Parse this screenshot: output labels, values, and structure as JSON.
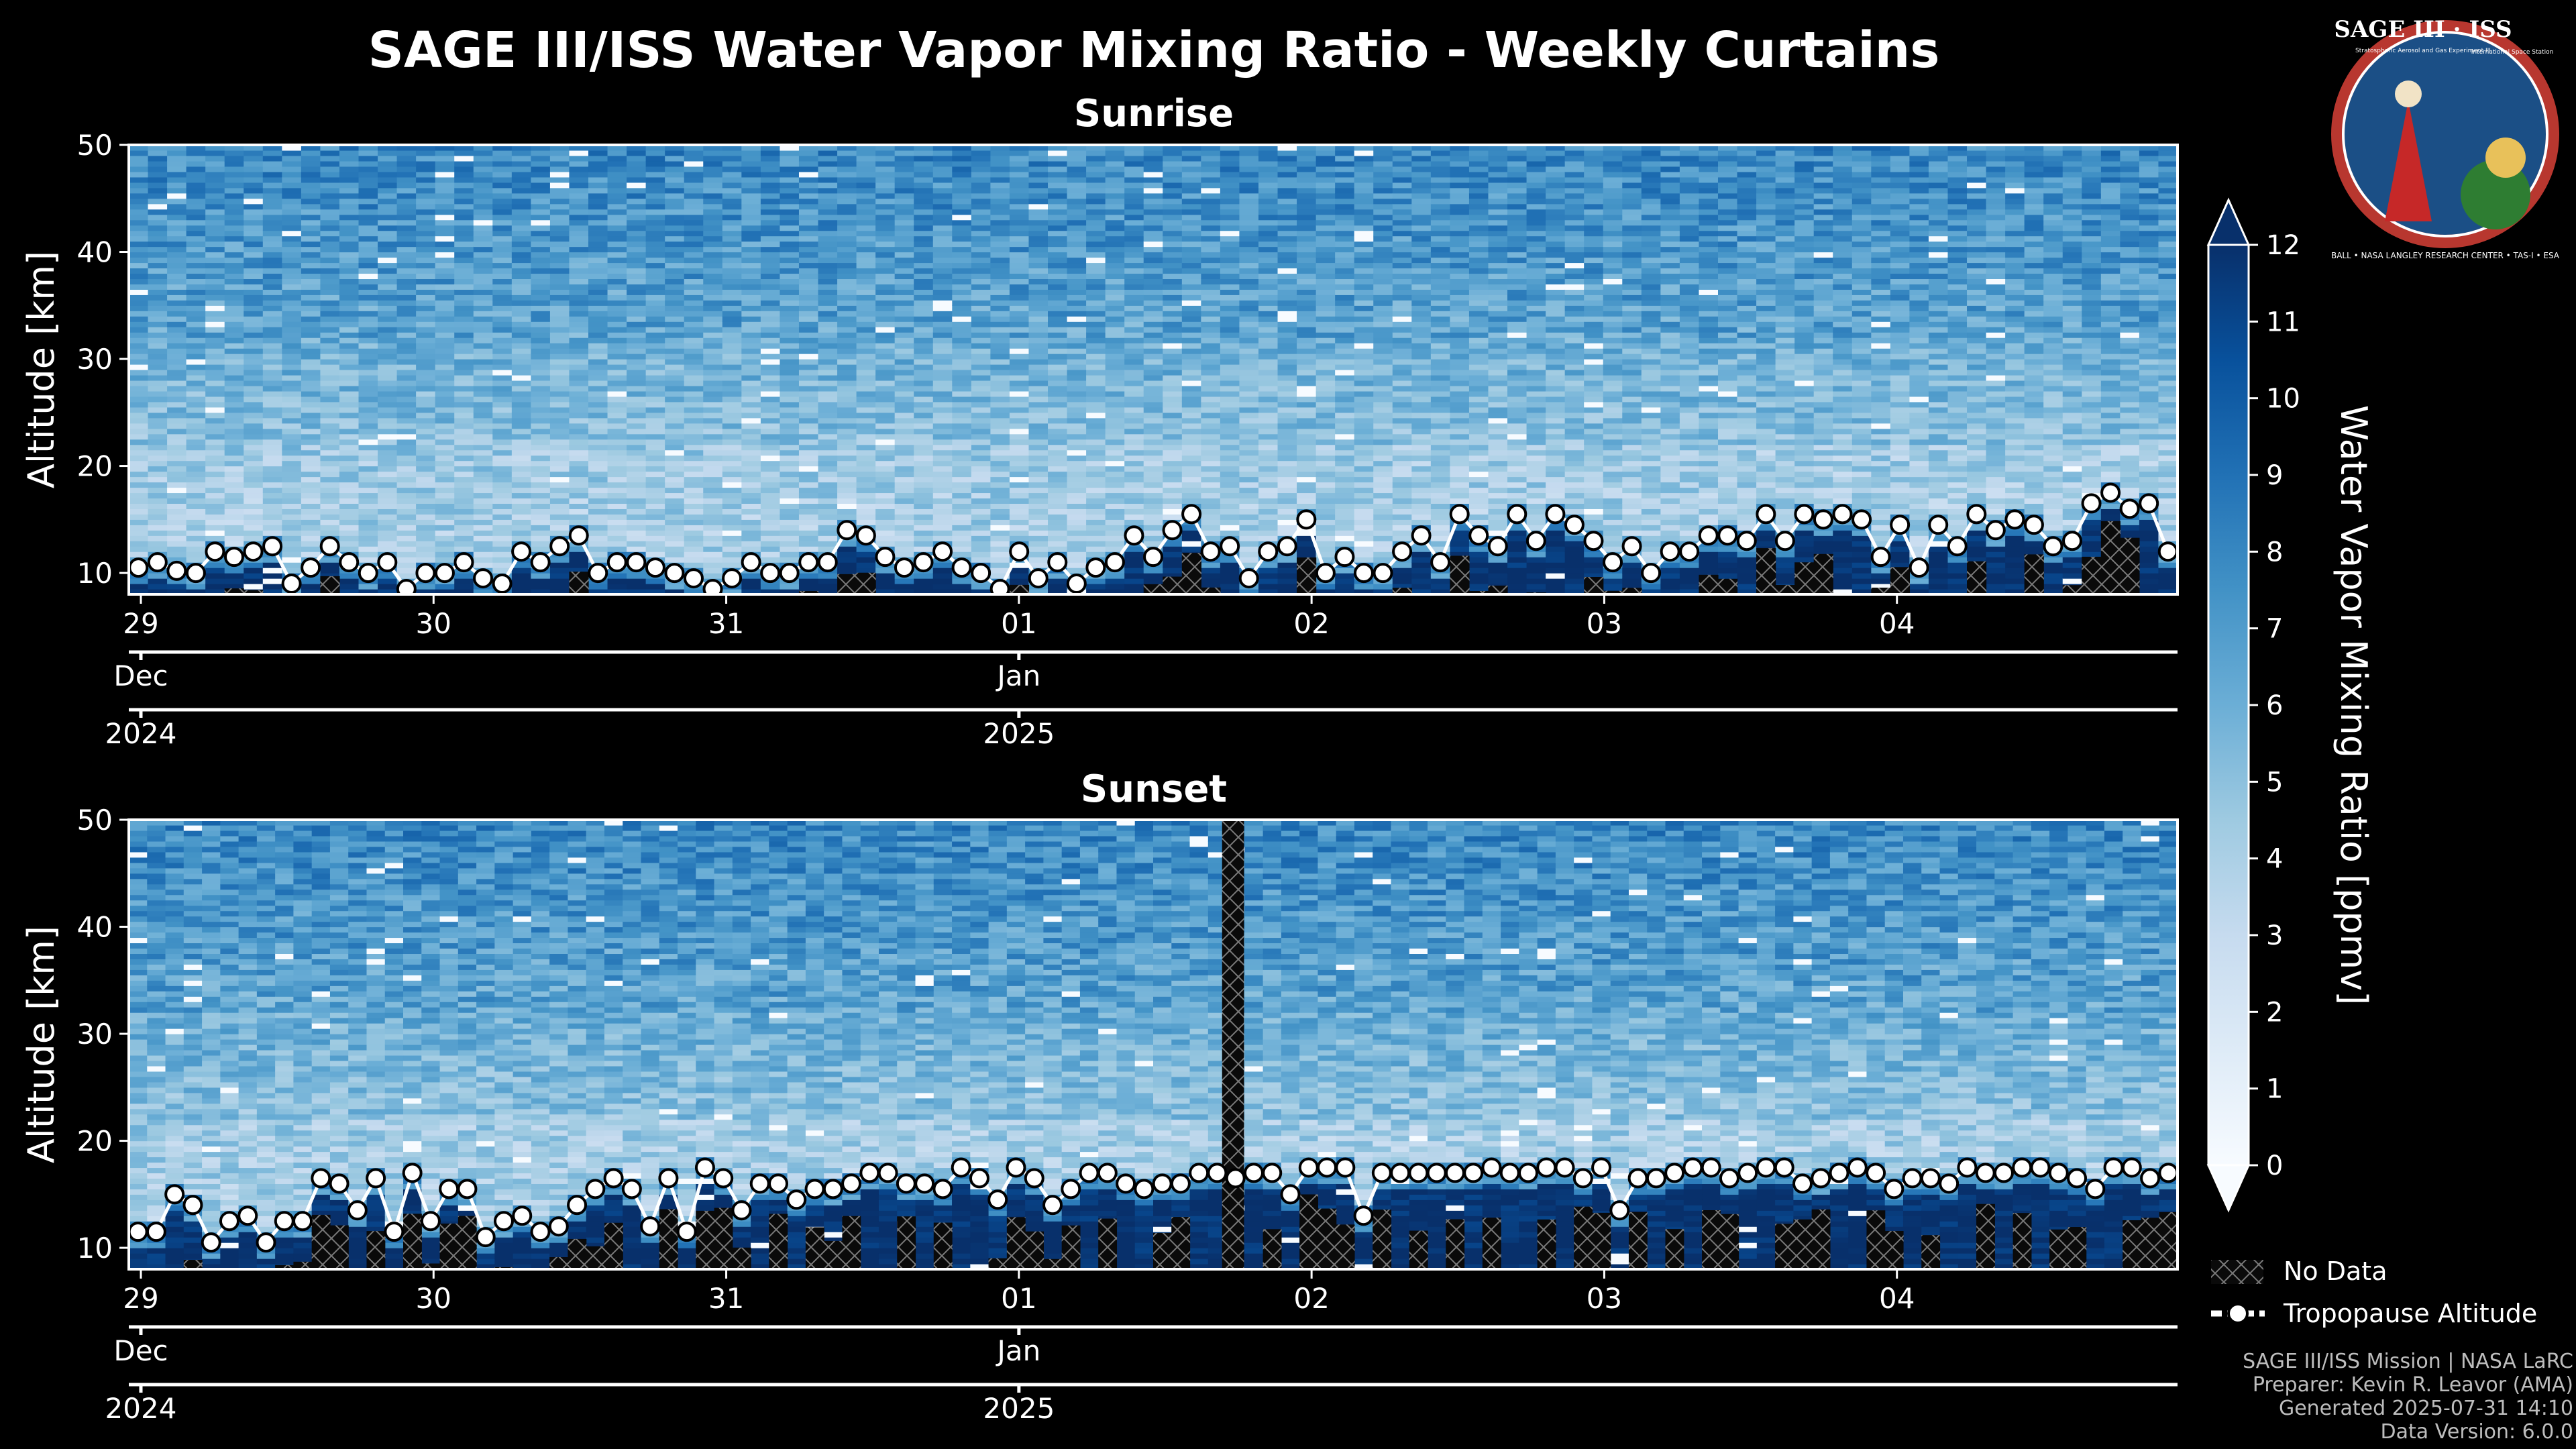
{
  "figure": {
    "title": "SAGE III/ISS Water Vapor Mixing Ratio - Weekly Curtains",
    "logo": {
      "text": "SAGE III · ISS",
      "small_text": "Stratospheric Aerosol and Gas Experiment III",
      "station_text": "International Space Station",
      "ring_text": "BALL • NASA LANGLEY RESEARCH CENTER • TAS-I • ESA"
    },
    "credits": [
      "SAGE III/ISS Mission | NASA LaRC",
      "Preparer: Kevin R. Leavor (AMA)",
      "Generated 2025-07-31 14:10",
      "Data Version: 6.0.0"
    ],
    "legend": {
      "no_data": "No Data",
      "tropopause": "Tropopause Altitude"
    }
  },
  "colorbar": {
    "label": "Water Vapor Mixing Ratio [ppmv]",
    "min": 0,
    "max": 12,
    "ticks": [
      "0",
      "1",
      "2",
      "3",
      "4",
      "5",
      "6",
      "7",
      "8",
      "9",
      "10",
      "11",
      "12"
    ],
    "colors": [
      "#f7fbff",
      "#deebf7",
      "#c6dbef",
      "#9ecae1",
      "#6baed6",
      "#4292c6",
      "#2171b5",
      "#08519c",
      "#08306b"
    ]
  },
  "chart_data": [
    {
      "type": "heatmap",
      "title": "Sunrise",
      "ylabel": "Altitude [km]",
      "ylim": [
        8,
        50
      ],
      "yticks": [
        "10",
        "20",
        "30",
        "40",
        "50"
      ],
      "x_range": [
        "2024-12-29",
        "2025-01-05"
      ],
      "xticks_day": [
        "29",
        "30",
        "31",
        "01",
        "02",
        "03",
        "04"
      ],
      "xticks_month": [
        "Dec",
        "Jan"
      ],
      "xticks_year": [
        "2024",
        "2025"
      ],
      "tropopause_km": [
        10.5,
        11.0,
        10.2,
        10.0,
        12.0,
        11.5,
        12.0,
        12.5,
        9.0,
        10.5,
        12.5,
        11.0,
        10.0,
        11.0,
        8.5,
        10.0,
        10.0,
        11.0,
        9.5,
        9.0,
        12.0,
        11.0,
        12.5,
        13.5,
        10.0,
        11.0,
        11.0,
        10.5,
        10.0,
        9.5,
        8.5,
        9.5,
        11.0,
        10.0,
        10.0,
        11.0,
        11.0,
        14.0,
        13.5,
        11.5,
        10.5,
        11.0,
        12.0,
        10.5,
        10.0,
        8.5,
        12.0,
        9.5,
        11.0,
        9.0,
        10.5,
        11.0,
        13.5,
        11.5,
        14.0,
        15.5,
        12.0,
        12.5,
        9.5,
        12.0,
        12.5,
        15.0,
        10.0,
        11.5,
        10.0,
        10.0,
        12.0,
        13.5,
        11.0,
        15.5,
        13.5,
        12.5,
        15.5,
        13.0,
        15.5,
        14.5,
        13.0,
        11.0,
        12.5,
        10.0,
        12.0,
        12.0,
        13.5,
        13.5,
        13.0,
        15.5,
        13.0,
        15.5,
        15.0,
        15.5,
        15.0,
        11.5,
        14.5,
        10.5,
        14.5,
        12.5,
        15.5,
        14.0,
        15.0,
        14.5,
        12.5,
        13.0,
        16.5,
        17.5,
        16.0,
        16.5,
        12.0
      ],
      "no_data_columns": []
    },
    {
      "type": "heatmap",
      "title": "Sunset",
      "ylabel": "Altitude [km]",
      "ylim": [
        8,
        50
      ],
      "yticks": [
        "10",
        "20",
        "30",
        "40",
        "50"
      ],
      "x_range": [
        "2024-12-29",
        "2025-01-05"
      ],
      "xticks_day": [
        "29",
        "30",
        "31",
        "01",
        "02",
        "03",
        "04"
      ],
      "xticks_month": [
        "Dec",
        "Jan"
      ],
      "xticks_year": [
        "2024",
        "2025"
      ],
      "tropopause_km": [
        11.5,
        11.5,
        15.0,
        14.0,
        10.5,
        12.5,
        13.0,
        10.5,
        12.5,
        12.5,
        16.5,
        16.0,
        13.5,
        16.5,
        11.5,
        17.0,
        12.5,
        15.5,
        15.5,
        11.0,
        12.5,
        13.0,
        11.5,
        12.0,
        14.0,
        15.5,
        16.5,
        15.5,
        12.0,
        16.5,
        11.5,
        17.5,
        16.5,
        13.5,
        16.0,
        16.0,
        14.5,
        15.5,
        15.5,
        16.0,
        17.0,
        17.0,
        16.0,
        16.0,
        15.5,
        17.5,
        16.5,
        14.5,
        17.5,
        16.5,
        14.0,
        15.5,
        17.0,
        17.0,
        16.0,
        15.5,
        16.0,
        16.0,
        17.0,
        17.0,
        16.5,
        17.0,
        17.0,
        15.0,
        17.5,
        17.5,
        17.5,
        13.0,
        17.0,
        17.0,
        17.0,
        17.0,
        17.0,
        17.0,
        17.5,
        17.0,
        17.0,
        17.5,
        17.5,
        16.5,
        17.5,
        13.5,
        16.5,
        16.5,
        17.0,
        17.5,
        17.5,
        16.5,
        17.0,
        17.5,
        17.5,
        16.0,
        16.5,
        17.0,
        17.5,
        17.0,
        15.5,
        16.5,
        16.5,
        16.0,
        17.5,
        17.0,
        17.0,
        17.5,
        17.5,
        17.0,
        16.5,
        15.5,
        17.5,
        17.5,
        16.5,
        17.0
      ],
      "no_data_columns": [
        0.539
      ]
    }
  ]
}
